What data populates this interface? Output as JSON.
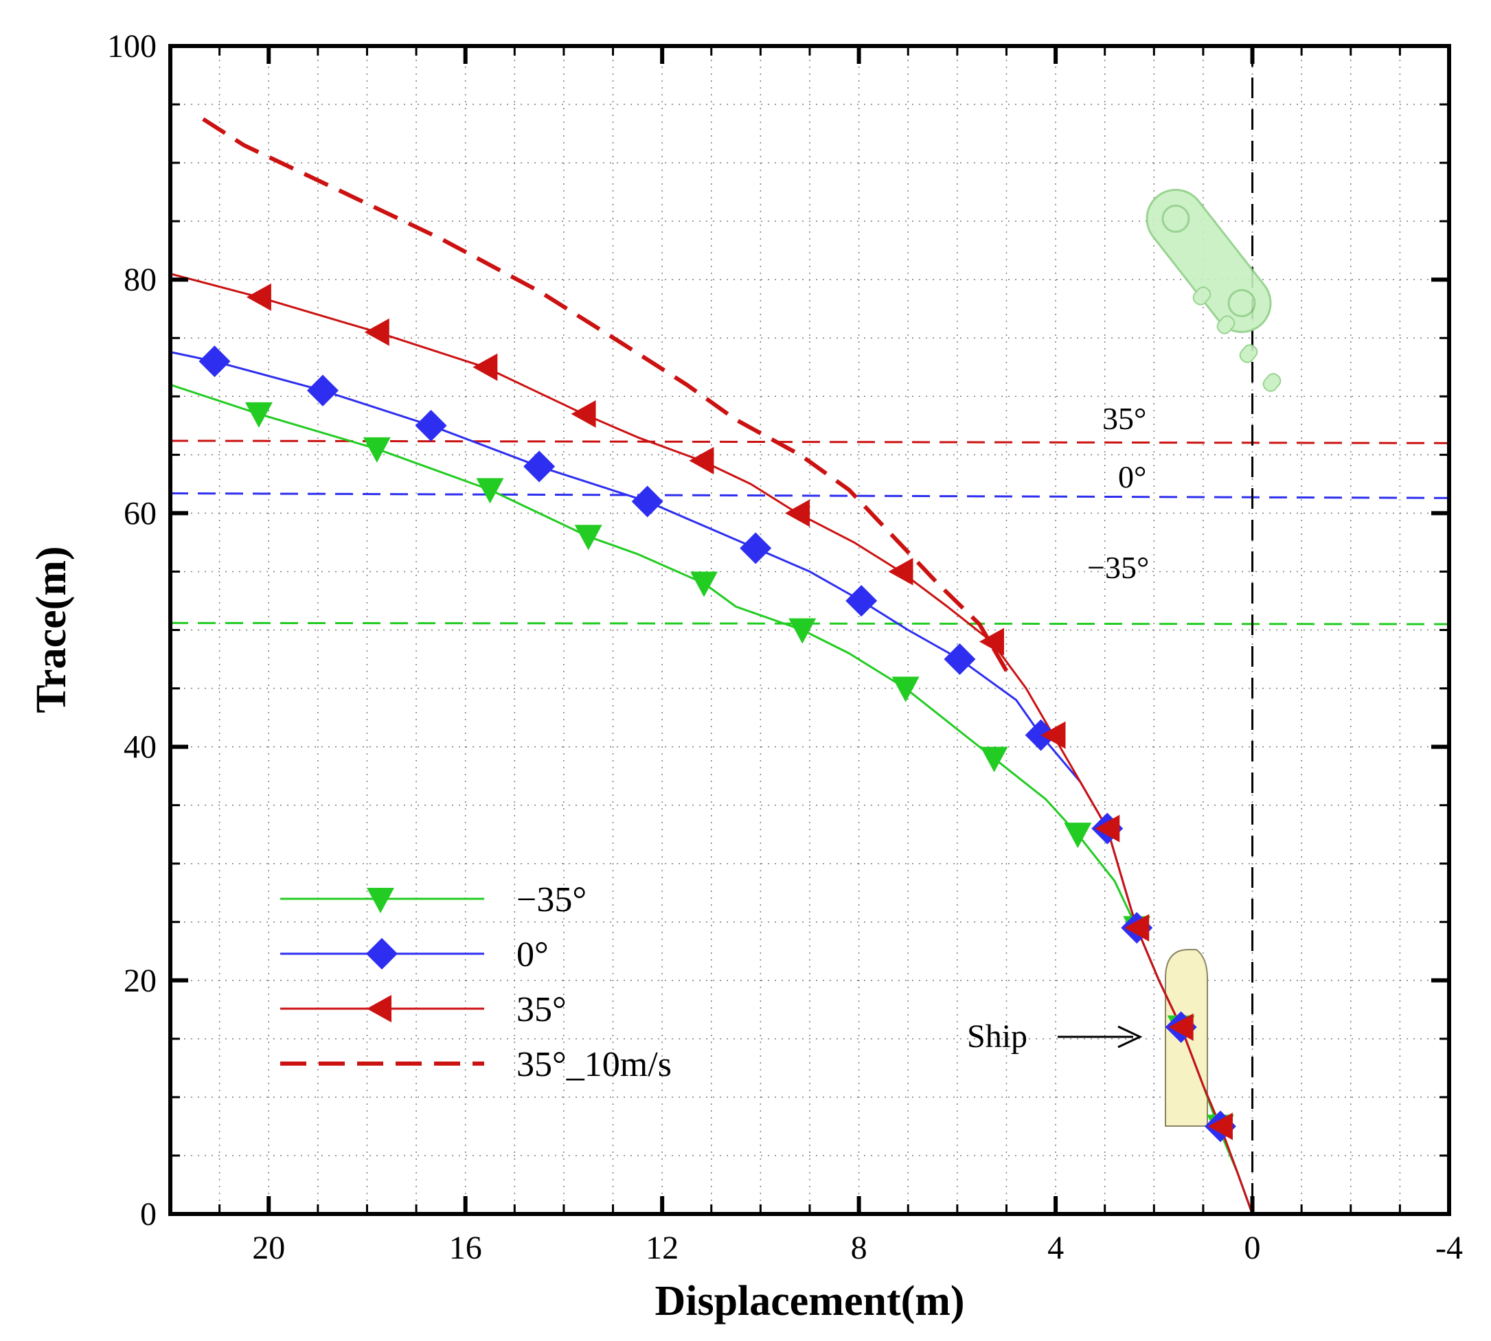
{
  "chart_data": {
    "type": "line",
    "title": "",
    "xlabel": "Displacement(m)",
    "ylabel": "Trace(m)",
    "xlim": [
      22,
      -4
    ],
    "ylim": [
      0,
      100
    ],
    "x_ticks": [
      20,
      16,
      12,
      8,
      4,
      0,
      -4
    ],
    "y_ticks": [
      0,
      20,
      40,
      60,
      80,
      100
    ],
    "grid": true,
    "legend_position": "bottom-left",
    "colors": {
      "green": "#22cc22",
      "blue": "#2e2ef0",
      "red": "#cc1111",
      "dashed_red": "#cc1111"
    },
    "series": [
      {
        "name": "−35°",
        "color": "#22cc22",
        "marker": "triangle-down",
        "dashed": false,
        "line": [
          [
            0,
            0
          ],
          [
            0.3,
            3.5
          ],
          [
            0.7,
            7.5
          ],
          [
            1.0,
            11
          ],
          [
            1.45,
            16
          ],
          [
            1.9,
            20
          ],
          [
            2.35,
            24.5
          ],
          [
            2.8,
            28.5
          ],
          [
            3.55,
            32.5
          ],
          [
            4.2,
            35.5
          ],
          [
            5.25,
            39
          ],
          [
            6,
            41.5
          ],
          [
            7.05,
            45
          ],
          [
            8.2,
            48
          ],
          [
            9.15,
            50
          ],
          [
            10.5,
            52
          ],
          [
            11.15,
            54
          ],
          [
            12.5,
            56.5
          ],
          [
            13.5,
            58
          ],
          [
            15.5,
            62
          ],
          [
            17.8,
            65.5
          ],
          [
            20.2,
            68.5
          ],
          [
            22,
            71
          ]
        ],
        "markers": [
          [
            0.65,
            7.5
          ],
          [
            1.45,
            16
          ],
          [
            2.35,
            24.5
          ],
          [
            3.55,
            32.5
          ],
          [
            5.25,
            39
          ],
          [
            7.05,
            45
          ],
          [
            9.15,
            50
          ],
          [
            11.15,
            54
          ],
          [
            13.5,
            58
          ],
          [
            15.5,
            62
          ],
          [
            17.8,
            65.5
          ],
          [
            20.2,
            68.5
          ]
        ]
      },
      {
        "name": "0°",
        "color": "#2e2ef0",
        "marker": "diamond",
        "dashed": false,
        "line": [
          [
            0,
            0
          ],
          [
            0.3,
            3.5
          ],
          [
            0.65,
            7.5
          ],
          [
            1.0,
            11
          ],
          [
            1.45,
            16
          ],
          [
            1.9,
            20
          ],
          [
            2.35,
            24.5
          ],
          [
            2.6,
            28
          ],
          [
            2.95,
            33
          ],
          [
            3.5,
            37
          ],
          [
            4.3,
            41
          ],
          [
            4.8,
            44
          ],
          [
            5.95,
            47.5
          ],
          [
            7,
            50
          ],
          [
            7.95,
            52.5
          ],
          [
            9,
            55
          ],
          [
            10.1,
            57
          ],
          [
            11.2,
            59
          ],
          [
            12.3,
            61
          ],
          [
            14.5,
            64
          ],
          [
            16.7,
            67.5
          ],
          [
            18.9,
            70.5
          ],
          [
            21.1,
            73
          ],
          [
            22,
            73.8
          ]
        ],
        "markers": [
          [
            0.65,
            7.5
          ],
          [
            1.45,
            16
          ],
          [
            2.35,
            24.5
          ],
          [
            2.95,
            33
          ],
          [
            4.3,
            41
          ],
          [
            5.95,
            47.5
          ],
          [
            7.95,
            52.5
          ],
          [
            10.1,
            57
          ],
          [
            12.3,
            61
          ],
          [
            14.5,
            64
          ],
          [
            16.7,
            67.5
          ],
          [
            18.9,
            70.5
          ],
          [
            21.1,
            73
          ]
        ]
      },
      {
        "name": "35°",
        "color": "#cc1111",
        "marker": "triangle-left",
        "dashed": false,
        "line": [
          [
            0,
            0
          ],
          [
            0.3,
            3.5
          ],
          [
            0.65,
            7.5
          ],
          [
            1.0,
            11
          ],
          [
            1.45,
            16
          ],
          [
            1.9,
            20
          ],
          [
            2.35,
            24.5
          ],
          [
            2.6,
            28
          ],
          [
            2.95,
            33
          ],
          [
            3.5,
            37
          ],
          [
            4.05,
            41
          ],
          [
            4.6,
            45
          ],
          [
            5.3,
            49
          ],
          [
            6.2,
            52
          ],
          [
            7.15,
            55
          ],
          [
            8.1,
            57.5
          ],
          [
            9.25,
            60
          ],
          [
            10.2,
            62.5
          ],
          [
            11.2,
            64.5
          ],
          [
            12.5,
            66.5
          ],
          [
            13.6,
            68.5
          ],
          [
            15.6,
            72.5
          ],
          [
            17.8,
            75.5
          ],
          [
            20.2,
            78.5
          ],
          [
            22,
            80.5
          ]
        ],
        "markers": [
          [
            0.65,
            7.5
          ],
          [
            1.45,
            16
          ],
          [
            2.35,
            24.5
          ],
          [
            2.95,
            33
          ],
          [
            4.05,
            41
          ],
          [
            5.3,
            49
          ],
          [
            7.15,
            55
          ],
          [
            9.25,
            60
          ],
          [
            11.2,
            64.5
          ],
          [
            13.6,
            68.5
          ],
          [
            15.6,
            72.5
          ],
          [
            17.8,
            75.5
          ],
          [
            20.2,
            78.5
          ]
        ]
      },
      {
        "name": "35°_10m/s",
        "color": "#cc1111",
        "marker": "none",
        "dashed": true,
        "line": [
          [
            5.0,
            46.5
          ],
          [
            5.55,
            50.5
          ],
          [
            6.4,
            54
          ],
          [
            7.3,
            58
          ],
          [
            8.2,
            62
          ],
          [
            9.2,
            65
          ],
          [
            10.5,
            68
          ],
          [
            11.5,
            71
          ],
          [
            12.8,
            74.5
          ],
          [
            14.5,
            79
          ],
          [
            16.5,
            83.5
          ],
          [
            18.5,
            87.5
          ],
          [
            20.5,
            91.5
          ],
          [
            21.5,
            94.2
          ]
        ],
        "markers": []
      }
    ],
    "reference_lines": [
      {
        "label": "35°",
        "y_left": 66.2,
        "y_right": 66.0,
        "color": "#cc1111"
      },
      {
        "label": "0°",
        "y_left": 61.7,
        "y_right": 61.3,
        "color": "#2e2ef0"
      },
      {
        "label": "−35°",
        "y_left": 50.6,
        "y_right": 50.5,
        "color": "#22cc22"
      }
    ],
    "vertical_reference": {
      "x": 0
    },
    "annotations": {
      "ship_label": "Ship"
    }
  }
}
